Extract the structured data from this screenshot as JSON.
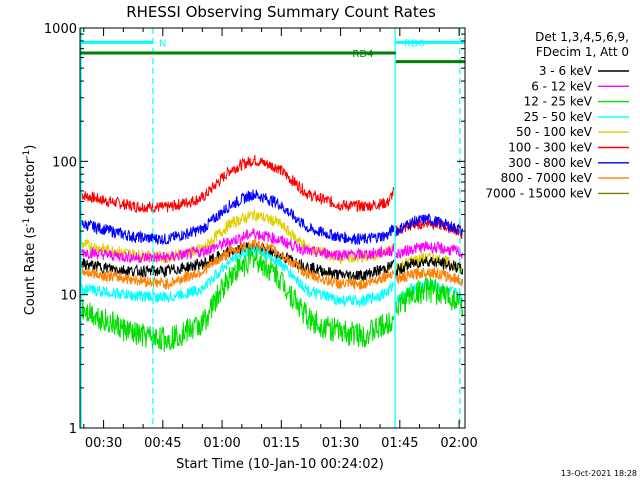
{
  "chart_data": {
    "type": "line",
    "title": "RHESSI Observing Summary Count Rates",
    "xlabel": "Start Time (10-Jan-10 00:24:02)",
    "ylabel": "Count Rate (s⁻¹ detector⁻¹)",
    "ylabel_parts": {
      "main": "Count Rate (s",
      "exp1": "-1",
      "mid": " detector",
      "exp2": "-1",
      "end": ")"
    },
    "yscale": "log",
    "ylim": [
      1,
      1000
    ],
    "xlim_minutes": [
      24.03,
      121.5
    ],
    "x_ticks": [
      {
        "minute": 30,
        "label": "00:30"
      },
      {
        "minute": 45,
        "label": "00:45"
      },
      {
        "minute": 60,
        "label": "01:00"
      },
      {
        "minute": 75,
        "label": "01:15"
      },
      {
        "minute": 90,
        "label": "01:30"
      },
      {
        "minute": 105,
        "label": "01:45"
      },
      {
        "minute": 120,
        "label": "02:00"
      }
    ],
    "y_ticks": [
      {
        "value": 1,
        "label": "1"
      },
      {
        "value": 10,
        "label": "10"
      },
      {
        "value": 100,
        "label": "100"
      },
      {
        "value": 1000,
        "label": "1000"
      }
    ],
    "legend": {
      "position": "right",
      "header": [
        "Det 1,3,4,5,6,9,",
        "FDecim 1, Att 0"
      ],
      "entries": [
        {
          "label": "3 - 6 keV",
          "color": "#000000"
        },
        {
          "label": "6 - 12 keV",
          "color": "#ff00ff"
        },
        {
          "label": "12 - 25 keV",
          "color": "#00e000"
        },
        {
          "label": "25 - 50 keV",
          "color": "#00ffff"
        },
        {
          "label": "50 - 100 keV",
          "color": "#e0d000"
        },
        {
          "label": "100 - 300 keV",
          "color": "#ff0000"
        },
        {
          "label": "300 - 800 keV",
          "color": "#0000ff"
        },
        {
          "label": "800 - 7000 keV",
          "color": "#ff8000"
        },
        {
          "label": "7000 - 15000 keV",
          "color": "#808000"
        }
      ]
    },
    "series": [
      {
        "color": "#ff0000",
        "segments": [
          {
            "x": [
              24.5,
              30,
              38,
              46,
              55,
              62,
              68,
              74,
              82,
              90,
              96,
              102,
              103.5
            ],
            "y": [
              56,
              51,
              46,
              45,
              53,
              86,
              103,
              90,
              56,
              47,
              46,
              49,
              60
            ]
          },
          {
            "x": [
              104,
              108,
              112,
              116,
              120,
              121
            ],
            "y": [
              30,
              33,
              35,
              33,
              30,
              28
            ]
          }
        ]
      },
      {
        "color": "#0000ff",
        "segments": [
          {
            "x": [
              24.5,
              30,
              38,
              46,
              55,
              62,
              68,
              74,
              82,
              90,
              96,
              102,
              103.5
            ],
            "y": [
              34,
              31,
              27,
              26,
              31,
              47,
              57,
              49,
              31,
              27,
              26,
              28,
              32
            ]
          },
          {
            "x": [
              104,
              108,
              112,
              116,
              120,
              121
            ],
            "y": [
              30,
              35,
              37,
              34,
              31,
              29
            ]
          }
        ]
      },
      {
        "color": "#e0d000",
        "segments": [
          {
            "x": [
              24.5,
              30,
              38,
              46,
              55,
              62,
              68,
              74,
              82,
              90,
              96,
              102,
              103.5
            ],
            "y": [
              24,
              22,
              20,
              19,
              22,
              34,
              40,
              35,
              22,
              19,
              19,
              21,
              23
            ]
          },
          {
            "x": [
              104,
              108,
              112,
              116,
              120,
              121
            ],
            "y": [
              16,
              18,
              19,
              18,
              16,
              15
            ]
          }
        ]
      },
      {
        "color": "#ff00ff",
        "segments": [
          {
            "x": [
              24.5,
              30,
              38,
              46,
              55,
              62,
              68,
              74,
              82,
              90,
              96,
              102,
              103.5
            ],
            "y": [
              21,
              20,
              19,
              19,
              21,
              25,
              29,
              26,
              21,
              20,
              20,
              21,
              22
            ]
          },
          {
            "x": [
              104,
              108,
              112,
              116,
              120,
              121
            ],
            "y": [
              20,
              22,
              23,
              22,
              21,
              20
            ]
          }
        ]
      },
      {
        "color": "#000000",
        "segments": [
          {
            "x": [
              24.5,
              30,
              38,
              46,
              55,
              62,
              68,
              74,
              82,
              90,
              96,
              102,
              103.5
            ],
            "y": [
              17,
              16,
              15,
              15,
              17,
              21,
              23,
              20,
              16,
              14,
              14,
              16,
              17
            ]
          },
          {
            "x": [
              104,
              108,
              112,
              116,
              120,
              121
            ],
            "y": [
              15,
              17,
              18,
              17,
              16,
              15
            ]
          }
        ]
      },
      {
        "color": "#ff8000",
        "segments": [
          {
            "x": [
              24.5,
              30,
              38,
              46,
              55,
              62,
              68,
              74,
              82,
              90,
              96,
              102,
              103.5
            ],
            "y": [
              15,
              14,
              13,
              12,
              15,
              21,
              24,
              21,
              14,
              12,
              12,
              14,
              15
            ]
          },
          {
            "x": [
              104,
              108,
              112,
              116,
              120,
              121
            ],
            "y": [
              13,
              14,
              15,
              14,
              13,
              12
            ]
          }
        ]
      },
      {
        "color": "#00ffff",
        "segments": [
          {
            "x": [
              24.5,
              30,
              38,
              46,
              55,
              62,
              68,
              74,
              82,
              90,
              96,
              102,
              103.5
            ],
            "y": [
              11,
              10.5,
              9.8,
              9.5,
              11,
              18,
              22,
              18,
              10.5,
              9,
              9,
              10.5,
              12
            ]
          },
          {
            "x": [
              104,
              108,
              112,
              116,
              120,
              121
            ],
            "y": [
              9,
              11,
              12,
              11,
              10,
              9
            ]
          }
        ]
      },
      {
        "color": "#00e000",
        "segments": [
          {
            "x": [
              24.5,
              30,
              38,
              46,
              55,
              62,
              68,
              74,
              82,
              90,
              96,
              102,
              103.5
            ],
            "y": [
              8,
              6.5,
              5,
              4.6,
              6,
              14,
              19,
              14,
              6.5,
              5.2,
              5,
              6,
              7
            ]
          },
          {
            "x": [
              104,
              108,
              112,
              116,
              120,
              121
            ],
            "y": [
              8,
              10,
              11,
              10,
              9,
              8
            ]
          }
        ]
      }
    ],
    "markers": [
      {
        "label": "N",
        "color": "#00ffff",
        "x_start": 24.03,
        "x_end": 42.5,
        "y": 780,
        "vline_x": 42.5,
        "vline_style": "dashed",
        "label_x": 44
      },
      {
        "label": "RD0",
        "color": "#00ffff",
        "x_start": 104,
        "x_end": 121.5,
        "y": 780,
        "label_x": 106
      },
      {
        "label": "RD4",
        "color": "#008000",
        "x_start": 24.03,
        "x_end": 104,
        "y": 650,
        "label_x": 93
      },
      {
        "label": "",
        "color": "#008000",
        "x_start": 104,
        "x_end": 121.5,
        "y": 560
      }
    ],
    "vlines": [
      {
        "x": 24.3,
        "color": "#00ffff",
        "style": "solid"
      },
      {
        "x": 103.8,
        "color": "#00ffff",
        "style": "solid"
      },
      {
        "x": 120.2,
        "color": "#00ffff",
        "style": "dashed"
      }
    ]
  },
  "footer": {
    "timestamp": "13-Oct-2021 18:28"
  }
}
